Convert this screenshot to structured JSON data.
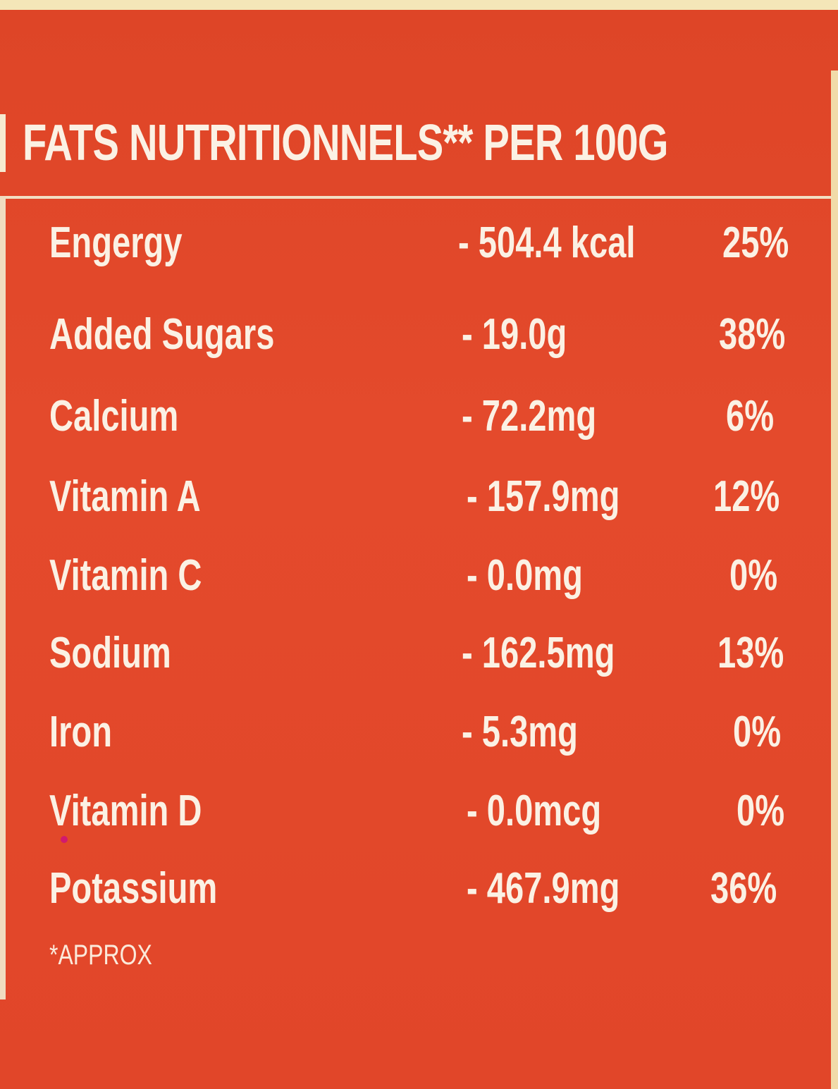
{
  "title": "FATS NUTRITIONNELS** PER 100G",
  "rows": [
    {
      "name": "Engergy",
      "amount": "- 504.4 kcal",
      "percent": "25%"
    },
    {
      "name": "Added Sugars",
      "amount": "- 19.0g",
      "percent": "38%"
    },
    {
      "name": "Calcium",
      "amount": "- 72.2mg",
      "percent": "6%"
    },
    {
      "name": "Vitamin A",
      "amount": "- 157.9mg",
      "percent": "12%"
    },
    {
      "name": "Vitamin C",
      "amount": "- 0.0mg",
      "percent": "0%"
    },
    {
      "name": "Sodium",
      "amount": "- 162.5mg",
      "percent": "13%"
    },
    {
      "name": "Iron",
      "amount": "- 5.3mg",
      "percent": "0%"
    },
    {
      "name": "Vitamin D",
      "amount": "- 0.0mcg",
      "percent": "0%"
    },
    {
      "name": "Potassium",
      "amount": "- 467.9mg",
      "percent": "36%"
    }
  ],
  "note": "*APPROX",
  "colors": {
    "panel": "#e1492a",
    "text": "#fbf1e4",
    "border": "#f0dcc0",
    "top_strip": "#f4e6b8"
  }
}
